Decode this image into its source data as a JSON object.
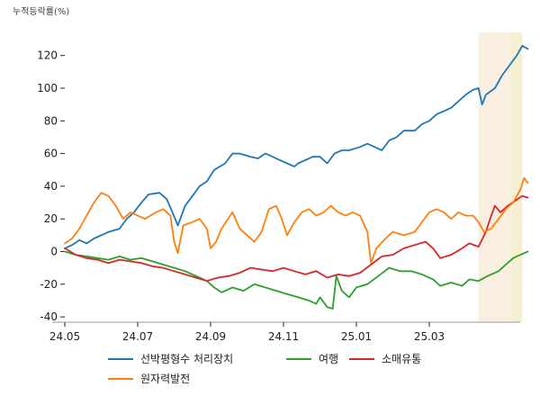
{
  "chart_data": {
    "type": "line",
    "title": "",
    "ylabel": "누적등락률(%)",
    "xlabel": "",
    "ylim": [
      -44,
      133
    ],
    "x_ticks": [
      "24.05",
      "24.07",
      "24.09",
      "24.11",
      "25.01",
      "25.03"
    ],
    "y_ticks": [
      -40,
      -20,
      0,
      20,
      40,
      60,
      80,
      100,
      120
    ],
    "x_range_months": [
      0,
      13.4
    ],
    "highlights": [
      {
        "from_month": 11.35,
        "to_month": 12.25,
        "color": "#f9efe1"
      },
      {
        "from_month": 12.25,
        "to_month": 12.55,
        "color": "#f6f0d2"
      }
    ],
    "series": [
      {
        "name": "선박평형수 처리장치",
        "color": "#1f77b4",
        "points": [
          [
            0,
            2
          ],
          [
            0.2,
            4
          ],
          [
            0.4,
            7
          ],
          [
            0.6,
            5
          ],
          [
            0.8,
            8
          ],
          [
            1.0,
            10
          ],
          [
            1.2,
            12
          ],
          [
            1.5,
            14
          ],
          [
            1.7,
            20
          ],
          [
            1.9,
            24
          ],
          [
            2.1,
            30
          ],
          [
            2.3,
            35
          ],
          [
            2.6,
            36
          ],
          [
            2.8,
            32
          ],
          [
            2.95,
            24
          ],
          [
            3.1,
            16
          ],
          [
            3.3,
            28
          ],
          [
            3.5,
            34
          ],
          [
            3.7,
            40
          ],
          [
            3.9,
            43
          ],
          [
            4.1,
            50
          ],
          [
            4.4,
            54
          ],
          [
            4.6,
            60
          ],
          [
            4.8,
            60
          ],
          [
            5.1,
            58
          ],
          [
            5.3,
            57
          ],
          [
            5.5,
            60
          ],
          [
            5.7,
            58
          ],
          [
            5.9,
            56
          ],
          [
            6.1,
            54
          ],
          [
            6.3,
            52
          ],
          [
            6.4,
            54
          ],
          [
            6.6,
            56
          ],
          [
            6.8,
            58
          ],
          [
            7.0,
            58
          ],
          [
            7.2,
            54
          ],
          [
            7.4,
            60
          ],
          [
            7.6,
            62
          ],
          [
            7.8,
            62
          ],
          [
            8.1,
            64
          ],
          [
            8.3,
            66
          ],
          [
            8.5,
            64
          ],
          [
            8.7,
            62
          ],
          [
            8.9,
            68
          ],
          [
            9.1,
            70
          ],
          [
            9.3,
            74
          ],
          [
            9.6,
            74
          ],
          [
            9.8,
            78
          ],
          [
            10.0,
            80
          ],
          [
            10.2,
            84
          ],
          [
            10.4,
            86
          ],
          [
            10.6,
            88
          ],
          [
            10.8,
            92
          ],
          [
            11.0,
            96
          ],
          [
            11.2,
            99
          ],
          [
            11.35,
            100
          ],
          [
            11.45,
            90
          ],
          [
            11.55,
            96
          ],
          [
            11.8,
            100
          ],
          [
            12.0,
            108
          ],
          [
            12.2,
            114
          ],
          [
            12.4,
            120
          ],
          [
            12.55,
            126
          ],
          [
            12.7,
            124
          ]
        ]
      },
      {
        "name": "여행",
        "color": "#2ca02c",
        "points": [
          [
            0,
            0
          ],
          [
            0.3,
            -2
          ],
          [
            0.6,
            -3
          ],
          [
            0.9,
            -4
          ],
          [
            1.2,
            -5
          ],
          [
            1.5,
            -3
          ],
          [
            1.8,
            -5
          ],
          [
            2.1,
            -4
          ],
          [
            2.4,
            -6
          ],
          [
            2.7,
            -8
          ],
          [
            3.0,
            -10
          ],
          [
            3.3,
            -12
          ],
          [
            3.6,
            -15
          ],
          [
            3.9,
            -18
          ],
          [
            4.1,
            -22
          ],
          [
            4.3,
            -25
          ],
          [
            4.6,
            -22
          ],
          [
            4.9,
            -24
          ],
          [
            5.2,
            -20
          ],
          [
            5.5,
            -22
          ],
          [
            5.8,
            -24
          ],
          [
            6.1,
            -26
          ],
          [
            6.4,
            -28
          ],
          [
            6.7,
            -30
          ],
          [
            6.9,
            -32
          ],
          [
            7.0,
            -28
          ],
          [
            7.2,
            -34
          ],
          [
            7.35,
            -35
          ],
          [
            7.45,
            -15
          ],
          [
            7.6,
            -24
          ],
          [
            7.8,
            -28
          ],
          [
            8.0,
            -22
          ],
          [
            8.3,
            -20
          ],
          [
            8.6,
            -15
          ],
          [
            8.9,
            -10
          ],
          [
            9.2,
            -12
          ],
          [
            9.5,
            -12
          ],
          [
            9.8,
            -14
          ],
          [
            10.1,
            -17
          ],
          [
            10.3,
            -21
          ],
          [
            10.6,
            -19
          ],
          [
            10.9,
            -21
          ],
          [
            11.1,
            -17
          ],
          [
            11.35,
            -18
          ],
          [
            11.6,
            -15
          ],
          [
            11.9,
            -12
          ],
          [
            12.1,
            -8
          ],
          [
            12.3,
            -4
          ],
          [
            12.5,
            -2
          ],
          [
            12.7,
            0
          ]
        ]
      },
      {
        "name": "소매유통",
        "color": "#d62728",
        "points": [
          [
            0,
            2
          ],
          [
            0.3,
            -2
          ],
          [
            0.6,
            -4
          ],
          [
            0.9,
            -5
          ],
          [
            1.2,
            -7
          ],
          [
            1.5,
            -5
          ],
          [
            1.8,
            -6
          ],
          [
            2.1,
            -7
          ],
          [
            2.4,
            -9
          ],
          [
            2.7,
            -10
          ],
          [
            3.0,
            -12
          ],
          [
            3.3,
            -14
          ],
          [
            3.6,
            -16
          ],
          [
            3.9,
            -18
          ],
          [
            4.2,
            -16
          ],
          [
            4.5,
            -15
          ],
          [
            4.8,
            -13
          ],
          [
            5.1,
            -10
          ],
          [
            5.4,
            -11
          ],
          [
            5.7,
            -12
          ],
          [
            6.0,
            -10
          ],
          [
            6.3,
            -12
          ],
          [
            6.6,
            -14
          ],
          [
            6.9,
            -12
          ],
          [
            7.2,
            -16
          ],
          [
            7.5,
            -14
          ],
          [
            7.8,
            -15
          ],
          [
            8.1,
            -13
          ],
          [
            8.4,
            -8
          ],
          [
            8.7,
            -3
          ],
          [
            9.0,
            -2
          ],
          [
            9.3,
            2
          ],
          [
            9.6,
            4
          ],
          [
            9.9,
            6
          ],
          [
            10.1,
            2
          ],
          [
            10.3,
            -4
          ],
          [
            10.6,
            -2
          ],
          [
            10.9,
            2
          ],
          [
            11.1,
            5
          ],
          [
            11.35,
            3
          ],
          [
            11.55,
            12
          ],
          [
            11.7,
            22
          ],
          [
            11.8,
            28
          ],
          [
            11.95,
            24
          ],
          [
            12.15,
            28
          ],
          [
            12.35,
            31
          ],
          [
            12.55,
            34
          ],
          [
            12.7,
            33
          ]
        ]
      },
      {
        "name": "원자력발전",
        "color": "#ff7f0e",
        "points": [
          [
            0,
            5
          ],
          [
            0.2,
            8
          ],
          [
            0.4,
            14
          ],
          [
            0.6,
            22
          ],
          [
            0.8,
            30
          ],
          [
            1.0,
            36
          ],
          [
            1.2,
            34
          ],
          [
            1.4,
            28
          ],
          [
            1.6,
            20
          ],
          [
            1.8,
            24
          ],
          [
            2.0,
            22
          ],
          [
            2.2,
            20
          ],
          [
            2.5,
            24
          ],
          [
            2.7,
            26
          ],
          [
            2.9,
            22
          ],
          [
            3.0,
            6
          ],
          [
            3.1,
            -1
          ],
          [
            3.25,
            16
          ],
          [
            3.5,
            18
          ],
          [
            3.7,
            20
          ],
          [
            3.9,
            14
          ],
          [
            4.0,
            2
          ],
          [
            4.15,
            6
          ],
          [
            4.3,
            14
          ],
          [
            4.6,
            24
          ],
          [
            4.8,
            14
          ],
          [
            5.0,
            10
          ],
          [
            5.2,
            6
          ],
          [
            5.4,
            12
          ],
          [
            5.6,
            26
          ],
          [
            5.8,
            28
          ],
          [
            5.95,
            20
          ],
          [
            6.1,
            10
          ],
          [
            6.3,
            18
          ],
          [
            6.5,
            24
          ],
          [
            6.7,
            26
          ],
          [
            6.9,
            22
          ],
          [
            7.1,
            24
          ],
          [
            7.3,
            28
          ],
          [
            7.5,
            24
          ],
          [
            7.7,
            22
          ],
          [
            7.9,
            24
          ],
          [
            8.1,
            22
          ],
          [
            8.3,
            12
          ],
          [
            8.4,
            -7
          ],
          [
            8.55,
            2
          ],
          [
            8.8,
            8
          ],
          [
            9.0,
            12
          ],
          [
            9.3,
            10
          ],
          [
            9.6,
            12
          ],
          [
            9.8,
            18
          ],
          [
            10.0,
            24
          ],
          [
            10.2,
            26
          ],
          [
            10.4,
            24
          ],
          [
            10.6,
            20
          ],
          [
            10.8,
            24
          ],
          [
            11.0,
            22
          ],
          [
            11.2,
            22
          ],
          [
            11.35,
            18
          ],
          [
            11.5,
            12
          ],
          [
            11.7,
            14
          ],
          [
            11.9,
            20
          ],
          [
            12.1,
            26
          ],
          [
            12.3,
            30
          ],
          [
            12.5,
            38
          ],
          [
            12.6,
            45
          ],
          [
            12.7,
            42
          ]
        ]
      }
    ]
  }
}
